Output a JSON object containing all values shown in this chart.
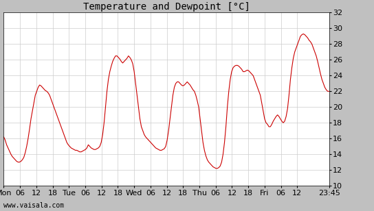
{
  "title": "Temperature and Dewpoint [°C]",
  "ylim": [
    10,
    32
  ],
  "yticks": [
    10,
    12,
    14,
    16,
    18,
    20,
    22,
    24,
    26,
    28,
    30,
    32
  ],
  "line_color": "#cc0000",
  "line_width": 0.8,
  "plot_bg_color": "#ffffff",
  "grid_color": "#cccccc",
  "outer_bg_color": "#c0c0c0",
  "watermark": "www.vaisala.com",
  "title_fontsize": 10,
  "tick_fontsize": 8,
  "x_tick_labels": [
    "Mon",
    "06",
    "12",
    "18",
    "Tue",
    "06",
    "12",
    "18",
    "Wed",
    "06",
    "12",
    "18",
    "Thu",
    "06",
    "12",
    "18",
    "Fri",
    "06",
    "12",
    "23:45"
  ],
  "x_tick_positions": [
    0,
    6,
    12,
    18,
    24,
    30,
    36,
    42,
    48,
    54,
    60,
    66,
    72,
    78,
    84,
    90,
    96,
    102,
    108,
    119.75
  ],
  "x_total_hours": 119.75,
  "data_y": [
    16.2,
    15.8,
    15.2,
    14.8,
    14.4,
    14.0,
    13.7,
    13.5,
    13.3,
    13.1,
    13.0,
    13.0,
    13.1,
    13.3,
    13.6,
    14.2,
    15.0,
    16.0,
    17.2,
    18.5,
    19.5,
    20.5,
    21.5,
    22.0,
    22.5,
    22.8,
    22.7,
    22.5,
    22.3,
    22.1,
    22.0,
    21.8,
    21.5,
    21.0,
    20.5,
    20.0,
    19.5,
    19.0,
    18.5,
    18.0,
    17.5,
    17.0,
    16.5,
    16.0,
    15.5,
    15.2,
    15.0,
    14.8,
    14.7,
    14.6,
    14.5,
    14.5,
    14.4,
    14.3,
    14.3,
    14.4,
    14.5,
    14.6,
    14.8,
    15.2,
    15.0,
    14.8,
    14.7,
    14.6,
    14.6,
    14.7,
    14.8,
    15.0,
    15.5,
    16.5,
    18.0,
    20.0,
    22.0,
    23.5,
    24.5,
    25.2,
    25.8,
    26.2,
    26.5,
    26.5,
    26.3,
    26.1,
    25.8,
    25.6,
    25.8,
    26.0,
    26.2,
    26.5,
    26.3,
    26.0,
    25.5,
    24.5,
    23.0,
    21.5,
    20.0,
    18.5,
    17.5,
    17.0,
    16.5,
    16.2,
    16.0,
    15.8,
    15.6,
    15.4,
    15.2,
    15.0,
    14.8,
    14.7,
    14.6,
    14.5,
    14.5,
    14.6,
    14.7,
    15.0,
    15.8,
    17.0,
    18.5,
    20.0,
    21.5,
    22.5,
    23.0,
    23.2,
    23.2,
    23.0,
    22.8,
    22.7,
    22.8,
    23.0,
    23.2,
    23.0,
    22.8,
    22.5,
    22.2,
    22.0,
    21.5,
    20.8,
    20.0,
    18.5,
    17.0,
    15.5,
    14.5,
    13.8,
    13.3,
    13.0,
    12.8,
    12.6,
    12.4,
    12.3,
    12.2,
    12.2,
    12.3,
    12.5,
    13.0,
    14.0,
    15.5,
    17.5,
    20.0,
    22.0,
    23.5,
    24.5,
    25.0,
    25.2,
    25.3,
    25.3,
    25.2,
    25.0,
    24.8,
    24.5,
    24.5,
    24.6,
    24.7,
    24.6,
    24.4,
    24.2,
    24.0,
    23.5,
    23.0,
    22.5,
    22.0,
    21.5,
    20.5,
    19.5,
    18.5,
    18.0,
    17.8,
    17.5,
    17.5,
    17.8,
    18.2,
    18.5,
    18.8,
    19.0,
    18.8,
    18.5,
    18.2,
    18.0,
    18.2,
    18.8,
    19.8,
    21.5,
    23.5,
    25.0,
    26.2,
    27.0,
    27.5,
    28.0,
    28.5,
    29.0,
    29.2,
    29.3,
    29.2,
    29.0,
    28.8,
    28.5,
    28.3,
    28.0,
    27.5,
    27.0,
    26.5,
    25.8,
    25.0,
    24.2,
    23.5,
    23.0,
    22.5,
    22.2,
    22.0,
    22.0
  ]
}
